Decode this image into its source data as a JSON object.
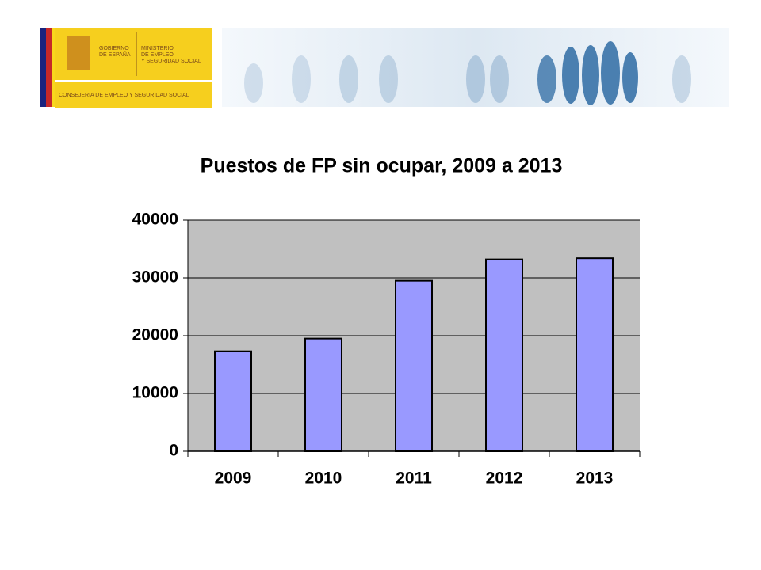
{
  "header": {
    "government": [
      "GOBIERNO",
      "DE ESPAÑA"
    ],
    "ministry": [
      "MINISTERIO",
      "DE EMPLEO",
      "Y SEGURIDAD SOCIAL"
    ],
    "department": "CONSEJERIA DE EMPLEO Y SEGURIDAD SOCIAL"
  },
  "chart_data": {
    "type": "bar",
    "title": "Puestos de FP sin ocupar, 2009 a 2013",
    "categories": [
      "2009",
      "2010",
      "2011",
      "2012",
      "2013"
    ],
    "values": [
      17300,
      19500,
      29500,
      33200,
      33400
    ],
    "color": "#9999ff",
    "plot_background": "#c0c0c0",
    "ylim": [
      0,
      40000
    ],
    "yticks": [
      0,
      10000,
      20000,
      30000,
      40000
    ],
    "grid": true
  }
}
